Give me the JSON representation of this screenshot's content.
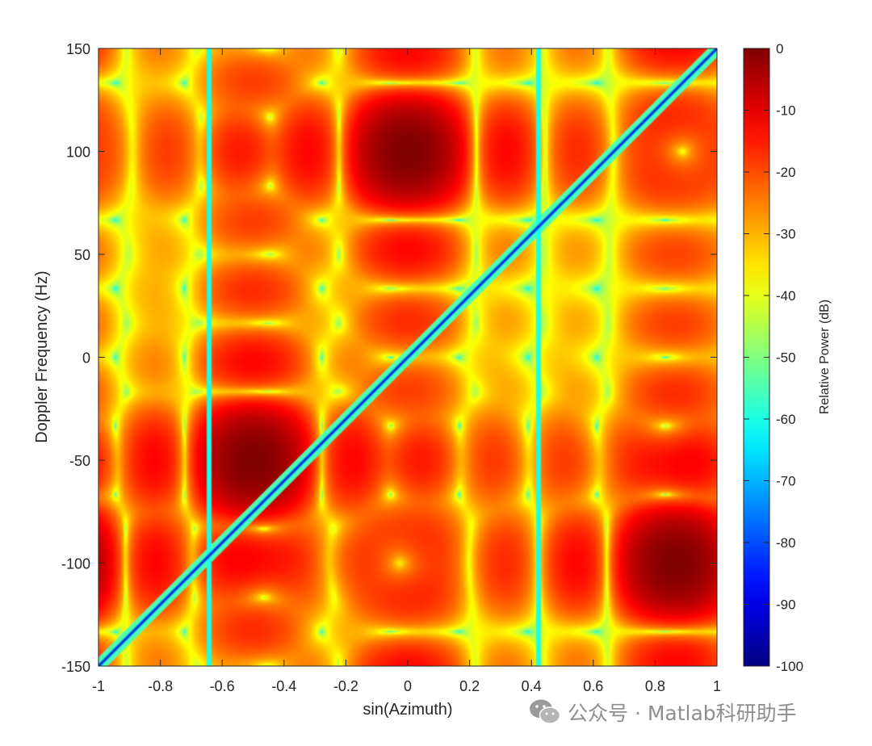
{
  "chart_data": {
    "type": "heatmap",
    "xlabel": "sin(Azimuth)",
    "ylabel": "Doppler Frequency (Hz)",
    "xlim": [
      -1,
      1
    ],
    "ylim": [
      -150,
      150
    ],
    "xticks": [
      -1,
      -0.8,
      -0.6,
      -0.4,
      -0.2,
      0,
      0.2,
      0.4,
      0.6,
      0.8,
      1
    ],
    "xtick_labels": [
      "-1",
      "-0.8",
      "-0.6",
      "-0.4",
      "-0.2",
      "0",
      "0.2",
      "0.4",
      "0.6",
      "0.8",
      "1"
    ],
    "yticks": [
      -150,
      -100,
      -50,
      0,
      50,
      100,
      150
    ],
    "ytick_labels": [
      "-150",
      "-100",
      "-50",
      "0",
      "50",
      "100",
      "150"
    ],
    "colorbar": {
      "label": "Relative Power (dB)",
      "range": [
        -100,
        0
      ],
      "ticks": [
        0,
        -10,
        -20,
        -30,
        -40,
        -50,
        -60,
        -70,
        -80,
        -90,
        -100
      ],
      "tick_labels": [
        "0",
        "-10",
        "-20",
        "-30",
        "-40",
        "-50",
        "-60",
        "-70",
        "-80",
        "-90",
        "-100"
      ],
      "colormap": "jet"
    },
    "peaks": [
      {
        "x": 0.0,
        "y": 100,
        "value": 0
      },
      {
        "x": -0.5,
        "y": -50,
        "value": 0
      },
      {
        "x": 0.866,
        "y": -100,
        "value": 0
      }
    ],
    "notches": {
      "vertical_lines_x": [
        -0.643,
        0.423
      ],
      "diagonal": {
        "from": [
          -1,
          -150
        ],
        "to": [
          1,
          150
        ]
      }
    },
    "grid": false
  },
  "watermark": {
    "text": "公众号 · Matlab科研助手",
    "icon": "wechat-icon"
  }
}
